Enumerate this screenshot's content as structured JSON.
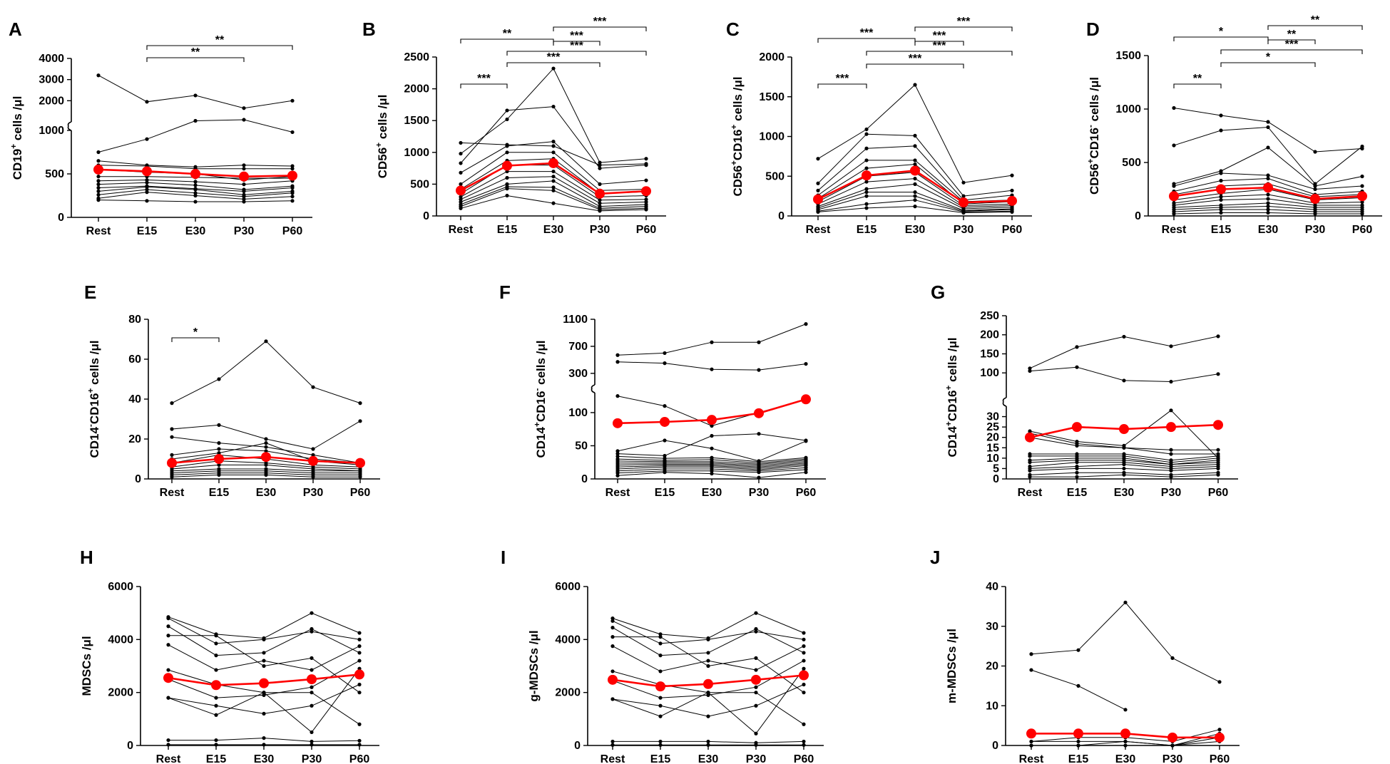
{
  "colors": {
    "individual": "#000000",
    "mean": "#ff0000",
    "axis": "#000000"
  },
  "chart_data": [
    {
      "type": "line",
      "label": "A",
      "ylabel": "CD19",
      "ylabel_sup": "+",
      "ylabel_suffix": " cells /μl",
      "categories": [
        "Rest",
        "E15",
        "E30",
        "P30",
        "P60"
      ],
      "ylim": [
        0,
        4000
      ],
      "break": {
        "low": [
          0,
          1000
        ],
        "high": [
          1000,
          4000
        ]
      },
      "yticks": [
        0,
        500,
        1000,
        2000,
        3000,
        4000
      ],
      "mean": [
        550,
        530,
        500,
        470,
        480
      ],
      "series": [
        [
          3200,
          1950,
          2250,
          1650,
          2000
        ],
        [
          750,
          900,
          1050,
          1100,
          980
        ],
        [
          650,
          600,
          580,
          600,
          590
        ],
        [
          600,
          590,
          560,
          560,
          560
        ],
        [
          550,
          520,
          500,
          430,
          470
        ],
        [
          470,
          470,
          460,
          450,
          450
        ],
        [
          420,
          430,
          410,
          380,
          420
        ],
        [
          380,
          400,
          370,
          320,
          360
        ],
        [
          340,
          360,
          330,
          300,
          340
        ],
        [
          300,
          350,
          320,
          260,
          300
        ],
        [
          260,
          320,
          280,
          240,
          280
        ],
        [
          220,
          290,
          250,
          210,
          240
        ],
        [
          200,
          190,
          180,
          180,
          190
        ]
      ],
      "significance": [
        {
          "from": "E15",
          "to": "P60",
          "label": "**"
        },
        {
          "from": "E15",
          "to": "P30",
          "label": "**"
        }
      ]
    },
    {
      "type": "line",
      "label": "B",
      "ylabel": "CD56",
      "ylabel_sup": "+",
      "ylabel_suffix": " cells /μl",
      "categories": [
        "Rest",
        "E15",
        "E30",
        "P30",
        "P60"
      ],
      "ylim": [
        0,
        2500
      ],
      "yticks": [
        0,
        500,
        1000,
        1500,
        2000,
        2500
      ],
      "mean": [
        400,
        790,
        830,
        350,
        390
      ],
      "series": [
        [
          1150,
          1120,
          1100,
          800,
          820
        ],
        [
          980,
          1520,
          2320,
          840,
          900
        ],
        [
          830,
          1660,
          1720,
          750,
          800
        ],
        [
          680,
          1100,
          1170,
          500,
          560
        ],
        [
          500,
          1000,
          1000,
          400,
          420
        ],
        [
          420,
          870,
          900,
          350,
          380
        ],
        [
          350,
          800,
          800,
          300,
          320
        ],
        [
          300,
          700,
          700,
          250,
          260
        ],
        [
          260,
          600,
          620,
          200,
          220
        ],
        [
          220,
          500,
          550,
          150,
          180
        ],
        [
          180,
          460,
          450,
          120,
          150
        ],
        [
          150,
          430,
          400,
          100,
          120
        ],
        [
          120,
          320,
          200,
          80,
          100
        ]
      ],
      "significance": [
        {
          "from": "E30",
          "to": "P60",
          "label": "***"
        },
        {
          "from": "Rest",
          "to": "E30",
          "label": "**"
        },
        {
          "from": "E30",
          "to": "P30",
          "label": "***"
        },
        {
          "from": "E15",
          "to": "P60",
          "label": "***"
        },
        {
          "from": "Rest",
          "to": "E15",
          "label": "***"
        },
        {
          "from": "E15",
          "to": "P30",
          "label": "***"
        }
      ]
    },
    {
      "type": "line",
      "label": "C",
      "ylabel": "CD56",
      "ylabel_sup": "+",
      "ylabel_mid": "CD16",
      "ylabel_sup2": "+",
      "ylabel_suffix": " cells /μl",
      "categories": [
        "Rest",
        "E15",
        "E30",
        "P30",
        "P60"
      ],
      "ylim": [
        0,
        2000
      ],
      "yticks": [
        0,
        500,
        1000,
        1500,
        2000
      ],
      "mean": [
        210,
        510,
        570,
        170,
        190
      ],
      "series": [
        [
          720,
          1090,
          1650,
          420,
          510
        ],
        [
          410,
          1030,
          1010,
          250,
          320
        ],
        [
          320,
          850,
          880,
          200,
          260
        ],
        [
          260,
          700,
          700,
          180,
          200
        ],
        [
          220,
          600,
          650,
          150,
          180
        ],
        [
          180,
          500,
          550,
          130,
          150
        ],
        [
          150,
          430,
          470,
          110,
          130
        ],
        [
          120,
          340,
          400,
          90,
          110
        ],
        [
          100,
          300,
          300,
          70,
          90
        ],
        [
          80,
          250,
          250,
          60,
          80
        ],
        [
          60,
          150,
          200,
          50,
          60
        ],
        [
          50,
          100,
          120,
          40,
          50
        ]
      ],
      "significance": [
        {
          "from": "E30",
          "to": "P60",
          "label": "***"
        },
        {
          "from": "Rest",
          "to": "E30",
          "label": "***"
        },
        {
          "from": "E30",
          "to": "P30",
          "label": "***"
        },
        {
          "from": "E15",
          "to": "P60",
          "label": "***"
        },
        {
          "from": "Rest",
          "to": "E15",
          "label": "***"
        },
        {
          "from": "E15",
          "to": "P30",
          "label": "***"
        }
      ]
    },
    {
      "type": "line",
      "label": "D",
      "ylabel": "CD56",
      "ylabel_sup": "+",
      "ylabel_mid": "CD16",
      "ylabel_sup2": "-",
      "ylabel_suffix": " cells /μl",
      "categories": [
        "Rest",
        "E15",
        "E30",
        "P30",
        "P60"
      ],
      "ylim": [
        0,
        1500
      ],
      "yticks": [
        0,
        500,
        1000,
        1500
      ],
      "mean": [
        185,
        250,
        265,
        160,
        185
      ],
      "series": [
        [
          1010,
          940,
          880,
          600,
          630
        ],
        [
          660,
          800,
          830,
          300,
          650
        ],
        [
          300,
          420,
          640,
          280,
          370
        ],
        [
          280,
          400,
          380,
          250,
          280
        ],
        [
          230,
          330,
          350,
          200,
          230
        ],
        [
          200,
          280,
          300,
          180,
          200
        ],
        [
          150,
          210,
          250,
          150,
          170
        ],
        [
          120,
          180,
          200,
          120,
          130
        ],
        [
          100,
          150,
          160,
          100,
          100
        ],
        [
          80,
          100,
          120,
          80,
          80
        ],
        [
          60,
          80,
          90,
          60,
          60
        ],
        [
          40,
          60,
          60,
          40,
          40
        ],
        [
          20,
          30,
          30,
          20,
          20
        ]
      ],
      "significance": [
        {
          "from": "E30",
          "to": "P60",
          "label": "**"
        },
        {
          "from": "Rest",
          "to": "E30",
          "label": "*"
        },
        {
          "from": "E30",
          "to": "P30",
          "label": "**"
        },
        {
          "from": "E15",
          "to": "P60",
          "label": "***"
        },
        {
          "from": "Rest",
          "to": "E15",
          "label": "**"
        },
        {
          "from": "E15",
          "to": "P30",
          "label": "*"
        }
      ]
    },
    {
      "type": "line",
      "label": "E",
      "ylabel": "CD14",
      "ylabel_sup": "-",
      "ylabel_mid": "CD16",
      "ylabel_sup2": "+",
      "ylabel_suffix": " cells /μl",
      "categories": [
        "Rest",
        "E15",
        "E30",
        "P30",
        "P60"
      ],
      "ylim": [
        0,
        80
      ],
      "yticks": [
        0,
        20,
        40,
        60,
        80
      ],
      "mean": [
        8,
        10,
        11,
        9,
        8
      ],
      "series": [
        [
          38,
          50,
          69,
          46,
          38
        ],
        [
          25,
          27,
          20,
          15,
          29
        ],
        [
          21,
          18,
          16,
          12,
          8
        ],
        [
          12,
          15,
          14,
          10,
          8
        ],
        [
          10,
          13,
          18,
          9,
          7
        ],
        [
          8,
          12,
          10,
          7,
          6
        ],
        [
          6,
          9,
          8,
          6,
          5
        ],
        [
          5,
          7,
          7,
          5,
          4
        ],
        [
          4,
          5,
          5,
          4,
          4
        ],
        [
          3,
          4,
          4,
          3,
          3
        ],
        [
          2,
          3,
          3,
          2,
          2
        ],
        [
          1,
          2,
          2,
          1,
          1
        ]
      ],
      "significance": [
        {
          "from": "Rest",
          "to": "E15",
          "label": "*"
        }
      ]
    },
    {
      "type": "line",
      "label": "F",
      "ylabel": "CD14",
      "ylabel_sup": "+",
      "ylabel_mid": "CD16",
      "ylabel_sup2": "-",
      "ylabel_suffix": " cells /μl",
      "categories": [
        "Rest",
        "E15",
        "E30",
        "P30",
        "P60"
      ],
      "ylim": [
        0,
        1100
      ],
      "break": {
        "low": [
          0,
          130
        ],
        "high": [
          130,
          1100
        ]
      },
      "yticks": [
        0,
        50,
        100,
        300,
        700,
        1100
      ],
      "mean": [
        84,
        86,
        89,
        99,
        120
      ],
      "series": [
        [
          570,
          600,
          760,
          760,
          1030
        ],
        [
          470,
          450,
          360,
          350,
          440
        ],
        [
          125,
          110,
          80,
          100,
          120
        ],
        [
          42,
          58,
          46,
          27,
          57
        ],
        [
          38,
          35,
          65,
          68,
          58
        ],
        [
          34,
          31,
          32,
          26,
          32
        ],
        [
          30,
          28,
          29,
          24,
          30
        ],
        [
          27,
          26,
          26,
          22,
          28
        ],
        [
          24,
          24,
          24,
          20,
          26
        ],
        [
          21,
          22,
          22,
          18,
          24
        ],
        [
          18,
          20,
          20,
          16,
          22
        ],
        [
          15,
          18,
          18,
          14,
          20
        ],
        [
          12,
          15,
          15,
          12,
          17
        ],
        [
          9,
          12,
          12,
          10,
          14
        ],
        [
          5,
          10,
          8,
          2,
          10
        ]
      ],
      "significance": []
    },
    {
      "type": "line",
      "label": "G",
      "ylabel": "CD14",
      "ylabel_sup": "+",
      "ylabel_mid": "CD16",
      "ylabel_sup2": "+",
      "ylabel_suffix": " cells /μl",
      "categories": [
        "Rest",
        "E15",
        "E30",
        "P30",
        "P60"
      ],
      "ylim": [
        0,
        250
      ],
      "break": {
        "low": [
          0,
          35
        ],
        "high": [
          35,
          250
        ]
      },
      "yticks": [
        0,
        5,
        10,
        15,
        20,
        25,
        30,
        100,
        150,
        200,
        250
      ],
      "mean": [
        20,
        25,
        24,
        25,
        26
      ],
      "series": [
        [
          112,
          168,
          195,
          170,
          196
        ],
        [
          105,
          115,
          80,
          77,
          97
        ],
        [
          23,
          18,
          16,
          33,
          10
        ],
        [
          22,
          17,
          15,
          14,
          14
        ],
        [
          20,
          16,
          15,
          12,
          12
        ],
        [
          12,
          12,
          12,
          9,
          11
        ],
        [
          11,
          11,
          11,
          8,
          10
        ],
        [
          9,
          10,
          10,
          7,
          9
        ],
        [
          8,
          9,
          9,
          7,
          8
        ],
        [
          6,
          8,
          8,
          6,
          7
        ],
        [
          5,
          6,
          7,
          5,
          6
        ],
        [
          4,
          5,
          5,
          4,
          5
        ],
        [
          2,
          3,
          3,
          2,
          3
        ],
        [
          1,
          1,
          2,
          1,
          2
        ]
      ],
      "significance": []
    },
    {
      "type": "line",
      "label": "H",
      "ylabel": "MDSCs",
      "ylabel_suffix": " /μl",
      "categories": [
        "Rest",
        "E15",
        "E30",
        "P30",
        "P60"
      ],
      "ylim": [
        0,
        6000
      ],
      "yticks": [
        0,
        2000,
        4000,
        6000
      ],
      "mean": [
        2550,
        2280,
        2350,
        2500,
        2680
      ],
      "series": [
        [
          4850,
          4200,
          4050,
          5000,
          4250
        ],
        [
          4800,
          3850,
          4000,
          4300,
          4000
        ],
        [
          4500,
          3400,
          3500,
          4400,
          3500
        ],
        [
          4150,
          4150,
          3000,
          3300,
          2000
        ],
        [
          3800,
          2850,
          3200,
          2850,
          3750
        ],
        [
          2850,
          2300,
          2000,
          2000,
          800
        ],
        [
          2500,
          1800,
          1900,
          2200,
          3200
        ],
        [
          1800,
          1500,
          1200,
          1500,
          2300
        ],
        [
          1800,
          1150,
          2000,
          500,
          2900
        ],
        [
          200,
          200,
          280,
          150,
          180
        ],
        [
          30,
          30,
          30,
          30,
          30
        ]
      ],
      "significance": []
    },
    {
      "type": "line",
      "label": "I",
      "ylabel": "g-MDSCs",
      "ylabel_suffix": " /μl",
      "categories": [
        "Rest",
        "E15",
        "E30",
        "P30",
        "P60"
      ],
      "ylim": [
        0,
        6000
      ],
      "yticks": [
        0,
        2000,
        4000,
        6000
      ],
      "mean": [
        2480,
        2230,
        2320,
        2480,
        2650
      ],
      "series": [
        [
          4800,
          4200,
          4050,
          5000,
          4250
        ],
        [
          4700,
          3850,
          4000,
          4300,
          4000
        ],
        [
          4450,
          3400,
          3500,
          4400,
          3500
        ],
        [
          4100,
          4100,
          3000,
          3300,
          2000
        ],
        [
          3750,
          2800,
          3200,
          2850,
          3750
        ],
        [
          2800,
          2300,
          2000,
          2000,
          800
        ],
        [
          2450,
          1800,
          1900,
          2200,
          3200
        ],
        [
          1750,
          1500,
          1100,
          1500,
          2300
        ],
        [
          1750,
          1100,
          2000,
          450,
          2900
        ],
        [
          150,
          150,
          150,
          100,
          150
        ],
        [
          20,
          20,
          20,
          20,
          20
        ]
      ],
      "significance": []
    },
    {
      "type": "line",
      "label": "J",
      "ylabel": "m-MDSCs",
      "ylabel_suffix": " /μl",
      "categories": [
        "Rest",
        "E15",
        "E30",
        "P30",
        "P60"
      ],
      "ylim": [
        0,
        40
      ],
      "yticks": [
        0,
        10,
        20,
        30,
        40
      ],
      "mean": [
        3,
        3,
        3,
        2,
        2
      ],
      "series": [
        [
          23,
          24,
          36,
          22,
          16
        ],
        [
          19,
          15,
          9,
          null,
          null
        ],
        [
          1,
          2,
          2,
          1,
          4
        ],
        [
          1,
          1,
          1,
          0,
          3
        ],
        [
          0,
          0,
          1,
          0,
          2
        ],
        [
          0,
          0,
          0,
          0,
          1
        ]
      ],
      "significance": []
    }
  ]
}
